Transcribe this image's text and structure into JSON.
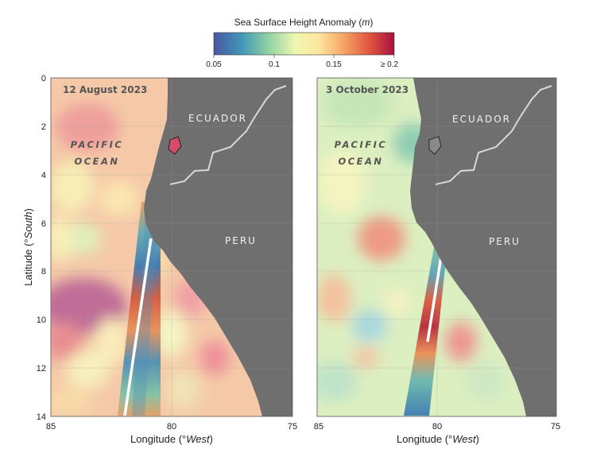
{
  "colorbar": {
    "title_prefix": "Sea Surface Height Anomaly (",
    "title_unit": "m",
    "title_suffix": ")",
    "ticks": [
      "0.05",
      "0.1",
      "0.15",
      "≥ 0.2"
    ],
    "range": [
      0.05,
      0.2
    ],
    "colors": [
      "#4a55a3",
      "#3f96b8",
      "#8fd0a4",
      "#eef7b0",
      "#fde6a0",
      "#f6a565",
      "#e0573f",
      "#a8103f"
    ]
  },
  "panels": [
    {
      "date": "12 August 2023",
      "ocean_line1": "PACIFIC",
      "ocean_line2": "OCEAN",
      "country_north": "ECUADOR",
      "country_south": "PERU",
      "xticks": [
        "85",
        "80",
        "75"
      ],
      "yticks": [
        "0",
        "2",
        "4",
        "6",
        "8",
        "10",
        "12",
        "14"
      ]
    },
    {
      "date": "3 October 2023",
      "ocean_line1": "PACIFIC",
      "ocean_line2": "OCEAN",
      "country_north": "ECUADOR",
      "country_south": "PERU",
      "xticks": [
        "85",
        "80",
        "75"
      ],
      "yticks": []
    }
  ],
  "axes": {
    "xlabel_prefix": "Longitude (°",
    "xlabel_unit": "West",
    "xlabel_suffix": ")",
    "ylabel_prefix": "Latitude (°",
    "ylabel_unit": "South",
    "ylabel_suffix": ")",
    "lon_range": [
      85,
      75
    ],
    "lat_range": [
      0,
      14
    ]
  },
  "colors": {
    "land": "#6f6f6f",
    "border": "#d8d8d8",
    "swath_gap": "#ffffff"
  }
}
